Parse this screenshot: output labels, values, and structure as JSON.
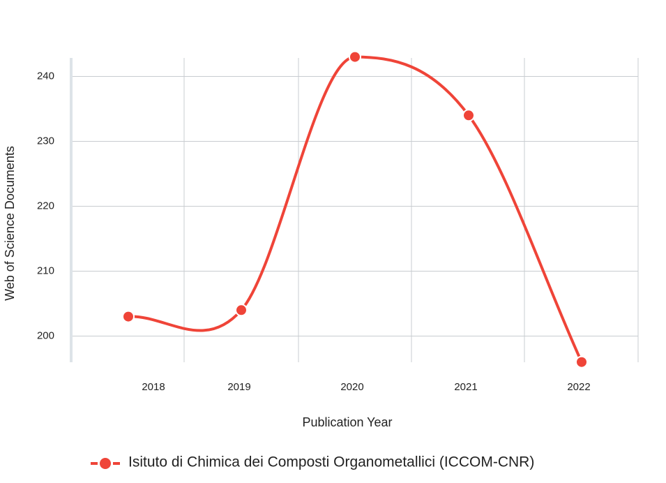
{
  "chart_data": {
    "type": "line",
    "x": [
      "2018",
      "2019",
      "2020",
      "2021",
      "2022"
    ],
    "series": [
      {
        "name": "Isituto di Chimica dei Composti Organometallici (ICCOM-CNR)",
        "values": [
          203,
          204,
          243,
          234,
          196
        ]
      }
    ],
    "xlabel": "Publication Year",
    "ylabel": "Web of Science Documents",
    "yticks": [
      "200",
      "210",
      "220",
      "230",
      "240"
    ],
    "ylim": [
      196,
      243
    ],
    "grid": true,
    "smooth": true,
    "legend": "bottom",
    "colors": {
      "series": "#ef4438",
      "grid": "#c8ccd0",
      "axis": "#dde3e8"
    }
  }
}
